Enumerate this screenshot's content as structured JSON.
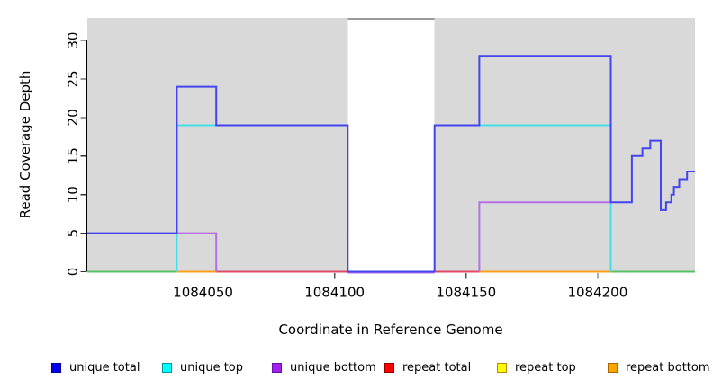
{
  "chart_data": {
    "type": "line",
    "subtype": "step-coverage-plot",
    "title": "",
    "xlabel": "Coordinate in Reference Genome",
    "ylabel": "Read Coverage Depth",
    "xlim": [
      1084006,
      1084237
    ],
    "ylim": [
      0,
      33
    ],
    "grid": false,
    "panel_bg": "#d9d9d9",
    "x_ticks": [
      {
        "value": 1084050,
        "label": "1084050"
      },
      {
        "value": 1084100,
        "label": "1084100"
      },
      {
        "value": 1084150,
        "label": "1084150"
      },
      {
        "value": 1084200,
        "label": "1084200"
      }
    ],
    "y_ticks": [
      {
        "value": 0,
        "label": "0"
      },
      {
        "value": 5,
        "label": "5"
      },
      {
        "value": 10,
        "label": "10"
      },
      {
        "value": 15,
        "label": "15"
      },
      {
        "value": 20,
        "label": "20"
      },
      {
        "value": 25,
        "label": "25"
      },
      {
        "value": 30,
        "label": "30"
      }
    ],
    "mask_region": {
      "x1": 1084105,
      "x2": 1084138,
      "fill": "#ffffff",
      "top_line_color": "#999999",
      "note": "white band where coverage is clipped above plot top"
    },
    "series": [
      {
        "name": "repeat total",
        "color": "#e04868",
        "paths": [
          [
            [
              1084055,
              0
            ],
            [
              1084105,
              0
            ]
          ],
          [
            [
              1084138,
              0
            ],
            [
              1084155,
              0
            ]
          ]
        ]
      },
      {
        "name": "repeat top",
        "color": "#eeee22",
        "paths": []
      },
      {
        "name": "repeat bottom",
        "color": "#ffa018",
        "paths": [
          [
            [
              1084040,
              0
            ],
            [
              1084055,
              0
            ]
          ],
          [
            [
              1084155,
              0
            ],
            [
              1084205,
              0
            ]
          ]
        ]
      },
      {
        "name": "overlap baseline",
        "color": "#58c068",
        "paths": [
          [
            [
              1084006,
              0
            ],
            [
              1084040,
              0
            ]
          ],
          [
            [
              1084205,
              0
            ],
            [
              1084237,
              0
            ]
          ]
        ]
      },
      {
        "name": "unique bottom",
        "color": "#b570e6",
        "paths": [
          [
            [
              1084040,
              5
            ],
            [
              1084055,
              5
            ],
            [
              1084055,
              0
            ]
          ],
          [
            [
              1084105,
              -0.12
            ],
            [
              1084138,
              -0.12
            ]
          ],
          [
            [
              1084155,
              0
            ],
            [
              1084155,
              9
            ],
            [
              1084205,
              9
            ]
          ]
        ]
      },
      {
        "name": "unique top",
        "color": "#44dfe8",
        "paths": [
          [
            [
              1084040,
              0
            ],
            [
              1084040,
              19
            ],
            [
              1084105,
              19
            ]
          ],
          [
            [
              1084138,
              19
            ],
            [
              1084205,
              19
            ],
            [
              1084205,
              0
            ]
          ]
        ]
      },
      {
        "name": "unique total",
        "color": "#4444f0",
        "paths": [
          [
            [
              1084006,
              5
            ],
            [
              1084040,
              5
            ],
            [
              1084040,
              24
            ],
            [
              1084055,
              24
            ],
            [
              1084055,
              19
            ],
            [
              1084105,
              19
            ],
            [
              1084105,
              0
            ],
            [
              1084138,
              0
            ],
            [
              1084138,
              19
            ],
            [
              1084155,
              19
            ],
            [
              1084155,
              28
            ],
            [
              1084205,
              28
            ],
            [
              1084205,
              9
            ],
            [
              1084213,
              9
            ],
            [
              1084213,
              15
            ],
            [
              1084217,
              15
            ],
            [
              1084217,
              16
            ],
            [
              1084220,
              16
            ],
            [
              1084220,
              17
            ],
            [
              1084224,
              17
            ],
            [
              1084224,
              8
            ],
            [
              1084226,
              8
            ],
            [
              1084226,
              9
            ],
            [
              1084228,
              9
            ],
            [
              1084228,
              10
            ],
            [
              1084229,
              10
            ],
            [
              1084229,
              11
            ],
            [
              1084231,
              11
            ],
            [
              1084231,
              12
            ],
            [
              1084234,
              12
            ],
            [
              1084234,
              13
            ],
            [
              1084237,
              13
            ]
          ]
        ]
      }
    ]
  },
  "legend": {
    "items": [
      {
        "label": "unique total",
        "fill": "#0000ee",
        "border": "#000099"
      },
      {
        "label": "unique top",
        "fill": "#00ffff",
        "border": "#009999"
      },
      {
        "label": "unique bottom",
        "fill": "#a020f0",
        "border": "#6a0dad"
      },
      {
        "label": "repeat total",
        "fill": "#ff0000",
        "border": "#990000"
      },
      {
        "label": "repeat top",
        "fill": "#ffff00",
        "border": "#bb8800"
      },
      {
        "label": "repeat bottom",
        "fill": "#ffa500",
        "border": "#aa6600"
      }
    ]
  }
}
